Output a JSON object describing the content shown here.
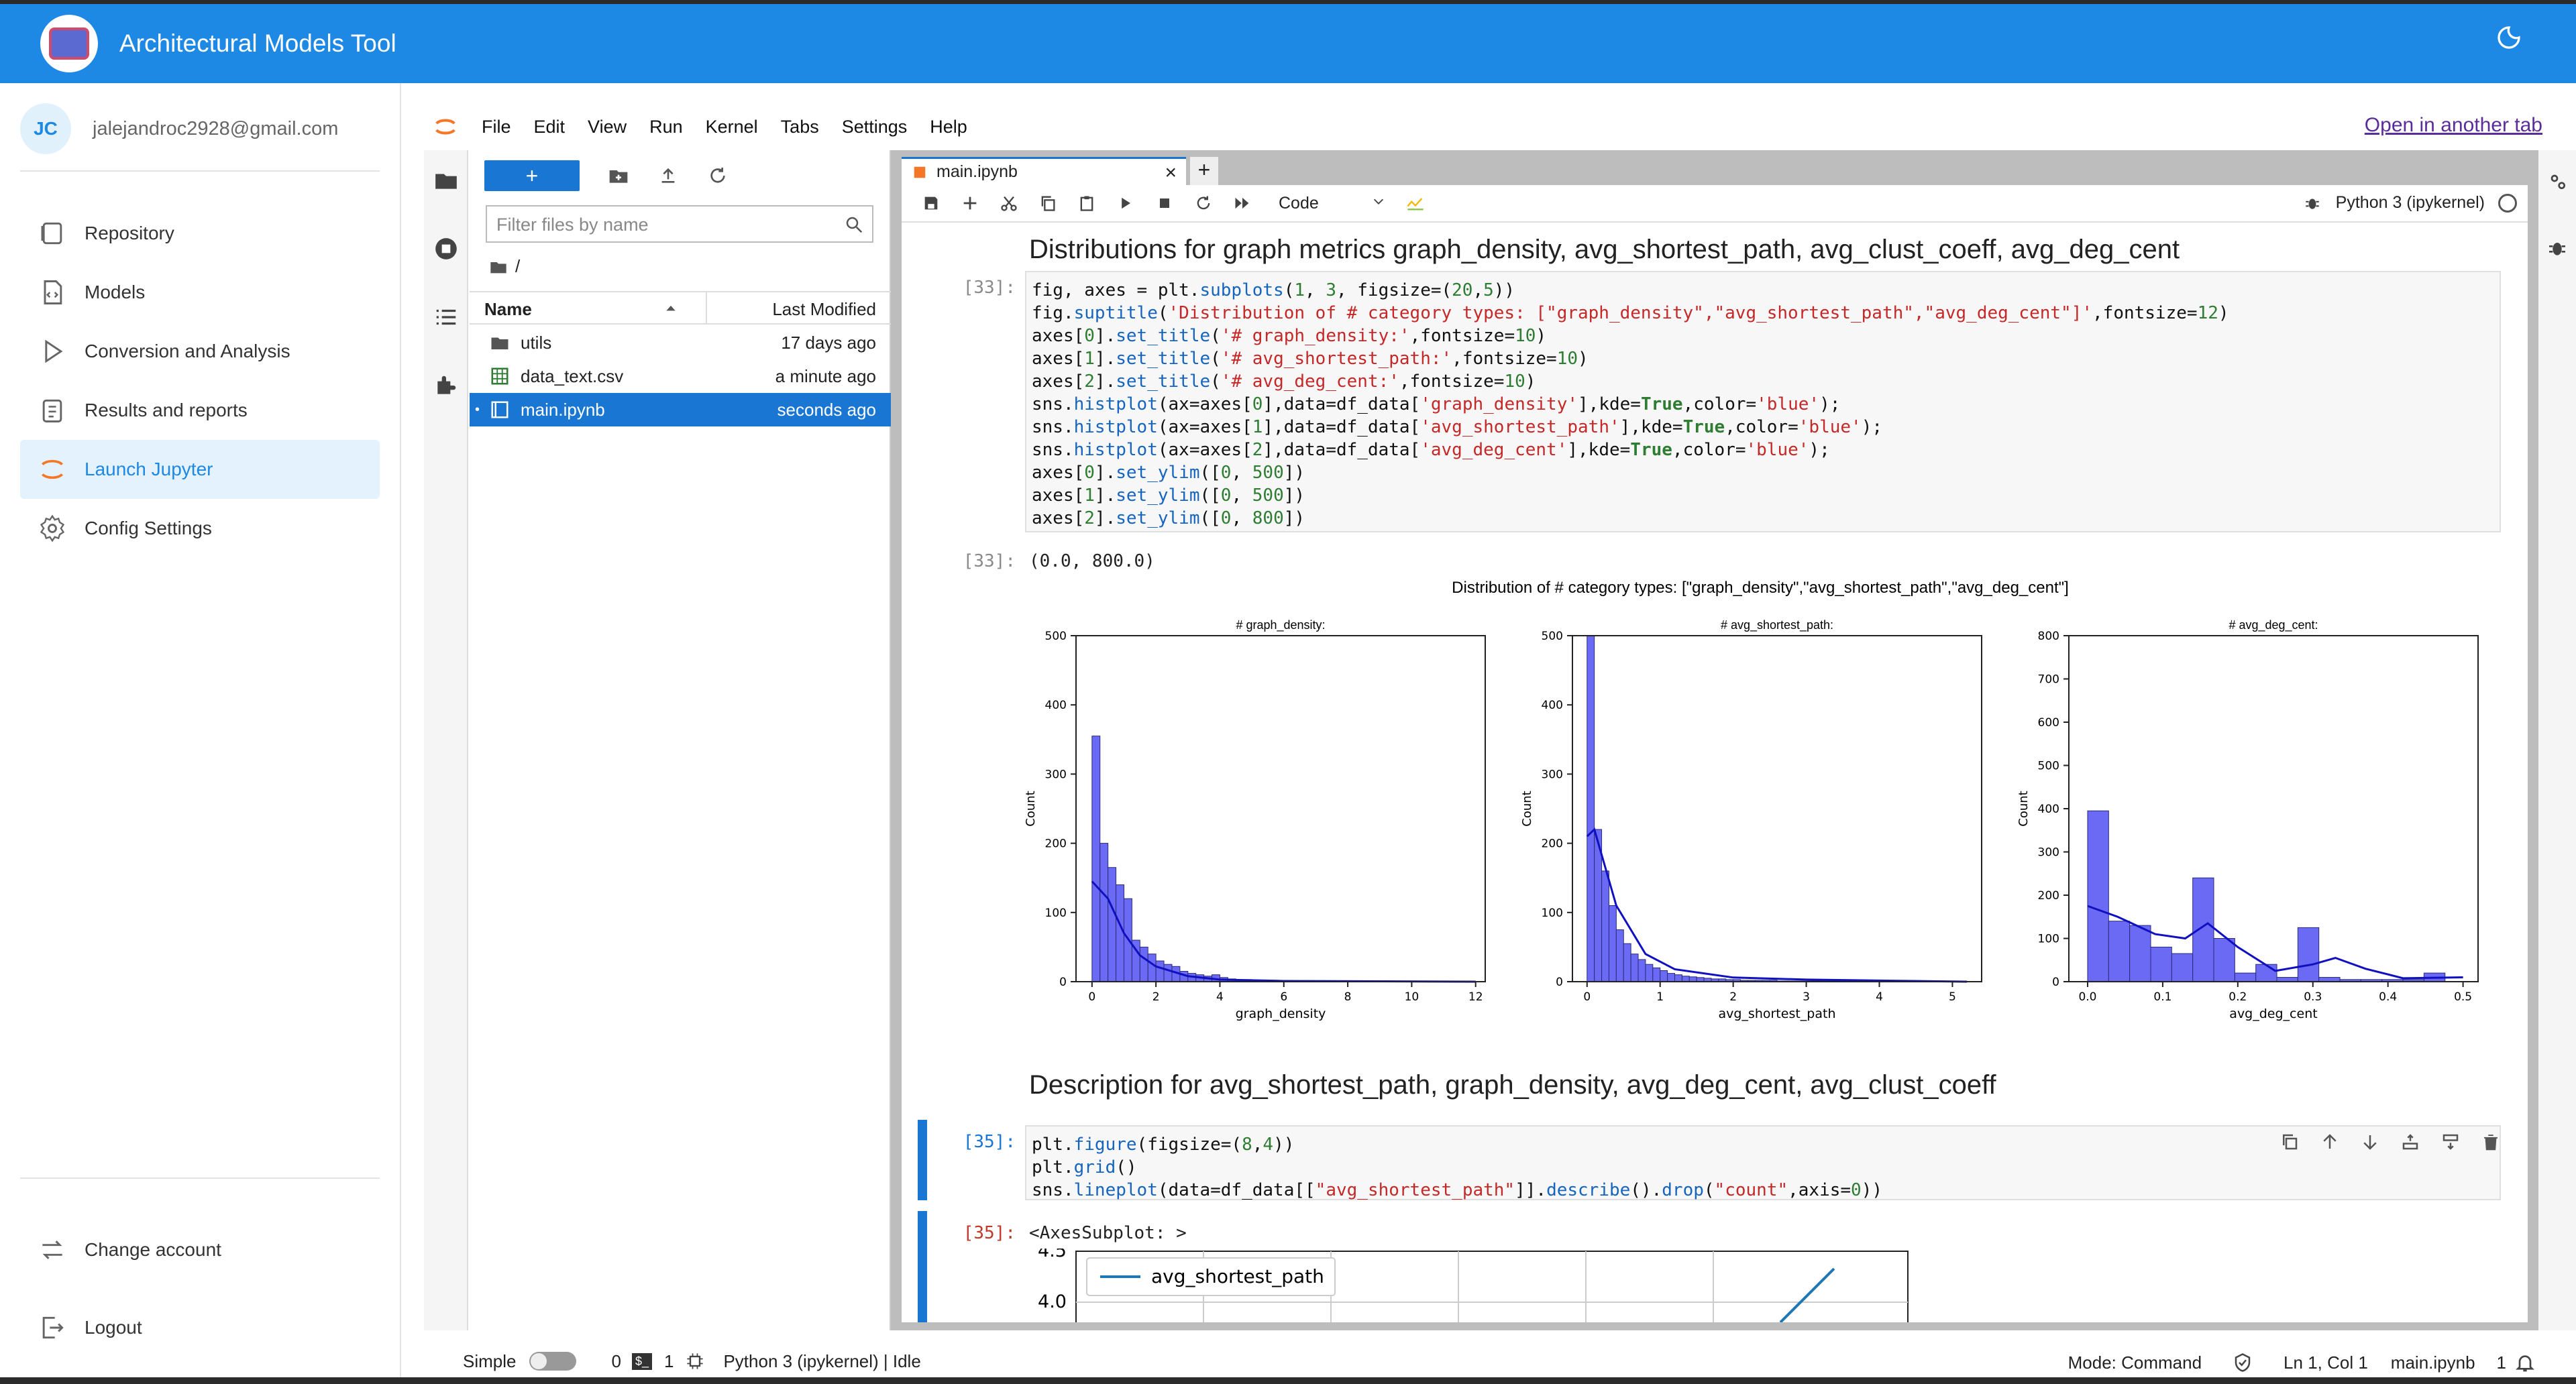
{
  "app": {
    "title": "Architectural Models Tool"
  },
  "user": {
    "initials": "JC",
    "email": "jalejandroc2928@gmail.com"
  },
  "nav": {
    "items": [
      {
        "label": "Repository",
        "icon": "repository-icon"
      },
      {
        "label": "Models",
        "icon": "models-icon"
      },
      {
        "label": "Conversion and Analysis",
        "icon": "play-icon"
      },
      {
        "label": "Results and reports",
        "icon": "results-icon"
      },
      {
        "label": "Launch Jupyter",
        "icon": "jupyter-icon",
        "active": true
      },
      {
        "label": "Config Settings",
        "icon": "gear-icon"
      }
    ],
    "bottom": [
      {
        "label": "Change account",
        "icon": "swap-icon"
      },
      {
        "label": "Logout",
        "icon": "logout-icon"
      }
    ]
  },
  "jupyter": {
    "menu": [
      "File",
      "Edit",
      "View",
      "Run",
      "Kernel",
      "Tabs",
      "Settings",
      "Help"
    ],
    "open_in_tab": "Open in another tab",
    "filter_placeholder": "Filter files by name",
    "breadcrumb": "/",
    "table_headers": {
      "name": "Name",
      "modified": "Last Modified"
    },
    "files": [
      {
        "name": "utils",
        "modified": "17 days ago",
        "icon": "folder-icon"
      },
      {
        "name": "data_text.csv",
        "modified": "a minute ago",
        "icon": "csv-icon"
      },
      {
        "name": "main.ipynb",
        "modified": "seconds ago",
        "icon": "notebook-icon",
        "selected": true
      }
    ],
    "tab_name": "main.ipynb",
    "cell_type": "Code",
    "kernel": "Python 3 (ipykernel)"
  },
  "notebook": {
    "heading1": "Distributions for graph metrics graph_density, avg_shortest_path, avg_clust_coeff, avg_deg_cent",
    "in33": "[33]:",
    "out33_prompt": "[33]:",
    "out33_text": "(0.0, 800.0)",
    "heading2": "Description for avg_shortest_path, graph_density, avg_deg_cent, avg_clust_coeff",
    "in35": "[35]:",
    "out35_prompt": "[35]:",
    "out35_text": "<AxesSubplot: >"
  },
  "chart_data": [
    {
      "type": "bar",
      "suptitle": "Distribution of # category types: [\"graph_density\",\"avg_shortest_path\",\"avg_deg_cent\"]",
      "title": "# graph_density:",
      "xlabel": "graph_density",
      "ylabel": "Count",
      "xlim": [
        -0.5,
        12.3
      ],
      "ylim": [
        0,
        500
      ],
      "xticks": [
        0,
        2,
        4,
        6,
        8,
        10,
        12
      ],
      "yticks": [
        0,
        100,
        200,
        300,
        400,
        500
      ],
      "bin_width": 0.25,
      "bin_start": 0,
      "values": [
        355,
        200,
        165,
        140,
        120,
        60,
        50,
        40,
        30,
        25,
        22,
        15,
        12,
        10,
        8,
        10,
        6,
        4,
        3,
        3,
        2,
        2,
        2,
        1,
        1,
        1,
        1,
        1,
        1,
        1,
        0,
        0,
        0,
        0,
        0,
        0,
        0,
        0,
        0,
        0,
        0,
        0,
        0,
        0,
        0,
        0,
        0,
        0,
        0,
        0,
        0,
        0,
        0,
        0,
        0,
        0,
        0,
        0,
        0,
        0,
        0,
        0,
        0,
        0,
        0,
        0,
        0,
        0,
        0,
        0,
        0,
        0,
        0,
        0,
        0,
        0,
        0,
        0,
        0,
        0,
        0,
        0,
        0,
        0,
        0,
        0,
        0,
        0,
        0,
        0,
        0,
        0,
        0,
        0,
        0,
        0,
        0,
        0,
        0,
        0,
        0,
        0,
        0,
        0,
        0,
        0,
        0,
        0,
        0,
        0,
        0,
        0,
        0,
        0,
        0,
        0,
        0,
        0,
        0,
        0,
        0,
        0,
        0,
        0,
        0,
        0,
        0,
        0,
        0,
        0,
        0,
        0,
        0,
        0,
        0,
        0,
        0,
        0,
        0,
        0,
        0,
        0,
        0,
        0,
        0,
        0,
        0,
        0,
        0,
        0,
        0,
        0,
        0,
        0,
        0
      ],
      "kde": [
        [
          0,
          145
        ],
        [
          0.5,
          120
        ],
        [
          1,
          70
        ],
        [
          1.5,
          38
        ],
        [
          2,
          22
        ],
        [
          3,
          8
        ],
        [
          4,
          3
        ],
        [
          6,
          1
        ],
        [
          12,
          0
        ]
      ],
      "color": "#4a4aff"
    },
    {
      "type": "bar",
      "title": "# avg_shortest_path:",
      "xlabel": "avg_shortest_path",
      "ylabel": "Count",
      "xlim": [
        -0.2,
        5.4
      ],
      "ylim": [
        0,
        500
      ],
      "xticks": [
        0,
        1,
        2,
        3,
        4,
        5
      ],
      "yticks": [
        0,
        100,
        200,
        300,
        400,
        500
      ],
      "bin_width": 0.1,
      "bin_start": 0,
      "values": [
        500,
        220,
        160,
        110,
        75,
        55,
        40,
        32,
        25,
        20,
        16,
        12,
        10,
        8,
        7,
        6,
        5,
        4,
        4,
        3,
        3,
        2,
        2,
        2,
        2,
        2,
        1,
        1,
        1,
        1,
        1,
        1,
        1,
        1,
        1,
        0,
        0,
        0,
        0,
        0,
        0,
        0,
        0,
        0,
        0,
        0,
        0,
        0,
        0,
        0,
        0,
        0
      ],
      "kde": [
        [
          0,
          210
        ],
        [
          0.1,
          220
        ],
        [
          0.4,
          110
        ],
        [
          0.8,
          40
        ],
        [
          1.2,
          18
        ],
        [
          2,
          6
        ],
        [
          3,
          3
        ],
        [
          5.2,
          0
        ]
      ],
      "color": "#4a4aff"
    },
    {
      "type": "bar",
      "title": "# avg_deg_cent:",
      "xlabel": "avg_deg_cent",
      "ylabel": "Count",
      "xlim": [
        -0.025,
        0.52
      ],
      "ylim": [
        0,
        800
      ],
      "xticks": [
        0.0,
        0.1,
        0.2,
        0.3,
        0.4,
        0.5
      ],
      "yticks": [
        0,
        100,
        200,
        300,
        400,
        500,
        600,
        700,
        800
      ],
      "bin_width": 0.028,
      "bin_start": 0,
      "values": [
        395,
        140,
        130,
        80,
        65,
        240,
        100,
        20,
        40,
        10,
        125,
        10,
        5,
        5,
        5,
        5,
        20
      ],
      "kde": [
        [
          0,
          175
        ],
        [
          0.04,
          150
        ],
        [
          0.09,
          110
        ],
        [
          0.13,
          100
        ],
        [
          0.16,
          135
        ],
        [
          0.2,
          80
        ],
        [
          0.25,
          25
        ],
        [
          0.3,
          40
        ],
        [
          0.33,
          55
        ],
        [
          0.37,
          30
        ],
        [
          0.42,
          8
        ],
        [
          0.5,
          10
        ]
      ],
      "color": "#4a4aff"
    },
    {
      "type": "line",
      "legend": [
        "avg_shortest_path"
      ],
      "yticks": [
        4.0,
        4.5
      ]
    }
  ]
}
